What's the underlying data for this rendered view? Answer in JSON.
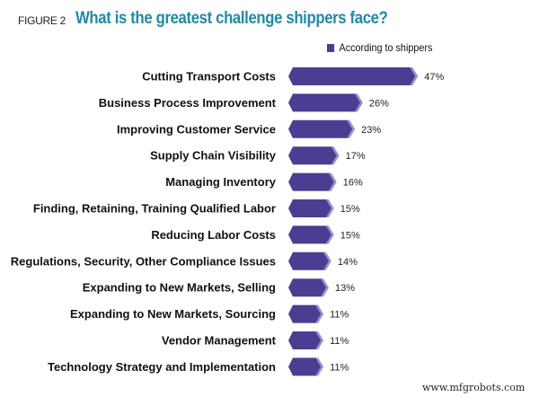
{
  "figure_label": "FIGURE 2",
  "watermark": "www.mfgrobots.com",
  "chart_data": {
    "type": "bar",
    "orientation": "horizontal",
    "title": "What is the greatest challenge shippers face?",
    "categories": [
      "Cutting Transport Costs",
      "Business Process Improvement",
      "Improving Customer Service",
      "Supply Chain Visibility",
      "Managing Inventory",
      "Finding, Retaining, Training Qualified Labor",
      "Reducing Labor Costs",
      "Regulations, Security, Other Compliance Issues",
      "Expanding to New Markets, Selling",
      "Expanding to New Markets, Sourcing",
      "Vendor Management",
      "Technology Strategy and Implementation"
    ],
    "series": [
      {
        "name": "According to shippers",
        "values": [
          47,
          26,
          23,
          17,
          16,
          15,
          15,
          14,
          13,
          11,
          11,
          11
        ]
      }
    ],
    "value_labels": [
      "47%",
      "26%",
      "23%",
      "17%",
      "16%",
      "15%",
      "15%",
      "14%",
      "13%",
      "11%",
      "11%",
      "11%"
    ],
    "unit": "%",
    "legend_position": "top-right",
    "grid": false,
    "colors": {
      "bar": "#4b3d91",
      "bar_cap": "#9b8fcf",
      "title": "#1f8aa6"
    }
  }
}
